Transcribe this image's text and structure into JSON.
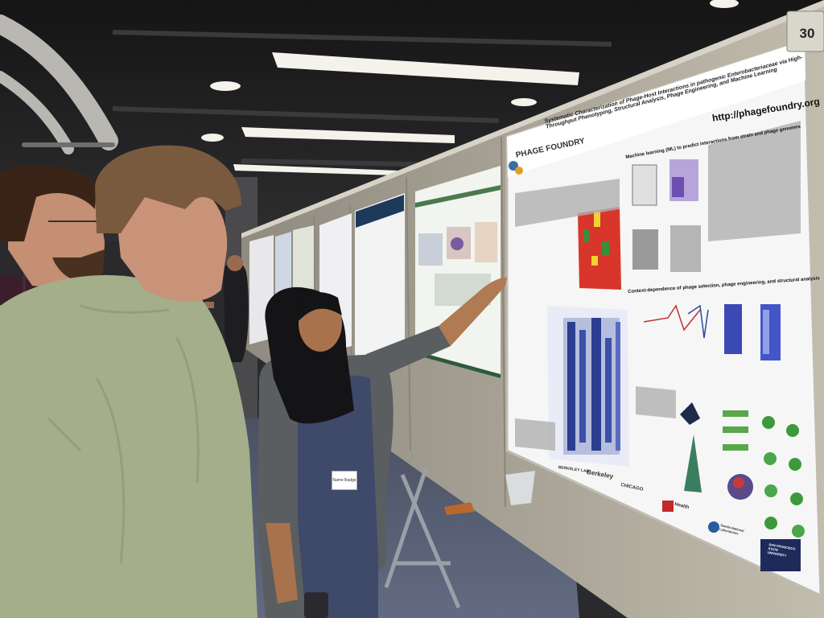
{
  "scene": {
    "description_tags": [
      "poster-session",
      "conference",
      "scientific-poster"
    ],
    "board_number": "30",
    "poster": {
      "logo": "PHAGE FOUNDRY",
      "title": "Systematic Characterization of Phage-Host Interactions in pathogenic Enterobacteriaceae via High-Throughput Phenotyping, Structural Analysis, Phage Engineering, and Machine Learning",
      "url": "http://phagefoundry.org",
      "section_ml": "Machine learning (ML) to predict interactions from strain and phage genomes",
      "section_context": "Context-dependence of phage selection, phage engineering, and structural analysis",
      "institutions": [
        "BERKELEY LAB",
        "Berkeley",
        "CHICAGO",
        "Health",
        "Sandia National Laboratories",
        "SAN FRANCISCO STATE UNIVERSITY"
      ]
    },
    "badge_text": "Name Badge",
    "colors": {
      "wall": "#b5b0a2",
      "ceiling": "#1c1c1e",
      "carpet": "#5d6478",
      "shirt": "#a6b08c",
      "dress": "#3f4a6a"
    }
  }
}
